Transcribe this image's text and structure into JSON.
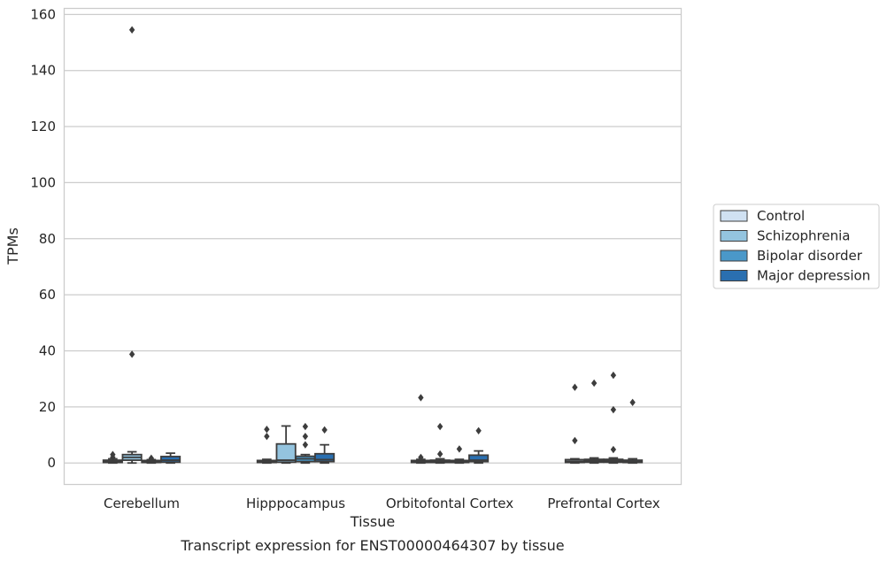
{
  "chart_data": {
    "type": "box",
    "caption": "Transcript expression for ENST00000464307 by tissue",
    "xlabel": "Tissue",
    "ylabel": "TPMs",
    "ylim": [
      -7.5,
      162
    ],
    "yticks": [
      0,
      20,
      40,
      60,
      80,
      100,
      120,
      140,
      160
    ],
    "grid": "horizontal",
    "legend_position": "right",
    "categories": [
      "Cerebellum",
      "Hipppocampus",
      "Orbitofontal Cortex",
      "Prefrontal Cortex"
    ],
    "series": [
      {
        "name": "Control",
        "color": "#d0e1f2",
        "boxes": [
          {
            "whislo": 0,
            "q1": 0.2,
            "med": 0.6,
            "q3": 1.0,
            "whishi": 1.5,
            "fliers": [
              2.0,
              3.0
            ]
          },
          {
            "whislo": 0,
            "q1": 0.2,
            "med": 0.5,
            "q3": 0.9,
            "whishi": 1.3,
            "fliers": [
              9.5,
              12.0
            ]
          },
          {
            "whislo": 0,
            "q1": 0.2,
            "med": 0.5,
            "q3": 0.9,
            "whishi": 1.3,
            "fliers": [
              2.0,
              23.3
            ]
          },
          {
            "whislo": 0,
            "q1": 0.2,
            "med": 0.6,
            "q3": 1.2,
            "whishi": 1.5,
            "fliers": [
              8.0,
              27.0
            ]
          }
        ]
      },
      {
        "name": "Schizophrenia",
        "color": "#94c4df",
        "boxes": [
          {
            "whislo": 0,
            "q1": 1.0,
            "med": 2.0,
            "q3": 3.0,
            "whishi": 4.0,
            "fliers": [
              38.8,
              154.5
            ]
          },
          {
            "whislo": 0,
            "q1": 0.3,
            "med": 1.0,
            "q3": 6.8,
            "whishi": 13.2,
            "fliers": []
          },
          {
            "whislo": 0,
            "q1": 0.2,
            "med": 0.6,
            "q3": 1.0,
            "whishi": 1.5,
            "fliers": [
              3.2,
              13.0
            ]
          },
          {
            "whislo": 0,
            "q1": 0.3,
            "med": 0.8,
            "q3": 1.3,
            "whishi": 1.8,
            "fliers": [
              28.5
            ]
          }
        ]
      },
      {
        "name": "Bipolar disorder",
        "color": "#4a98c9",
        "boxes": [
          {
            "whislo": 0,
            "q1": 0.2,
            "med": 0.5,
            "q3": 0.9,
            "whishi": 1.2,
            "fliers": [
              1.7
            ]
          },
          {
            "whislo": 0,
            "q1": 0.5,
            "med": 1.5,
            "q3": 2.4,
            "whishi": 3.0,
            "fliers": [
              6.5,
              9.5,
              13.0
            ]
          },
          {
            "whislo": 0,
            "q1": 0.2,
            "med": 0.5,
            "q3": 0.9,
            "whishi": 1.3,
            "fliers": [
              5.0
            ]
          },
          {
            "whislo": 0,
            "q1": 0.3,
            "med": 0.8,
            "q3": 1.3,
            "whishi": 1.8,
            "fliers": [
              4.8,
              19.0,
              31.3
            ]
          }
        ]
      },
      {
        "name": "Major depression",
        "color": "#2a6fb0",
        "boxes": [
          {
            "whislo": 0,
            "q1": 0.3,
            "med": 1.0,
            "q3": 2.3,
            "whishi": 3.5,
            "fliers": []
          },
          {
            "whislo": 0,
            "q1": 0.5,
            "med": 1.2,
            "q3": 3.3,
            "whishi": 6.5,
            "fliers": [
              11.8
            ]
          },
          {
            "whislo": 0,
            "q1": 0.5,
            "med": 1.0,
            "q3": 2.8,
            "whishi": 4.3,
            "fliers": [
              11.5
            ]
          },
          {
            "whislo": 0,
            "q1": 0.2,
            "med": 0.5,
            "q3": 1.0,
            "whishi": 1.5,
            "fliers": [
              21.6
            ]
          }
        ]
      }
    ]
  }
}
